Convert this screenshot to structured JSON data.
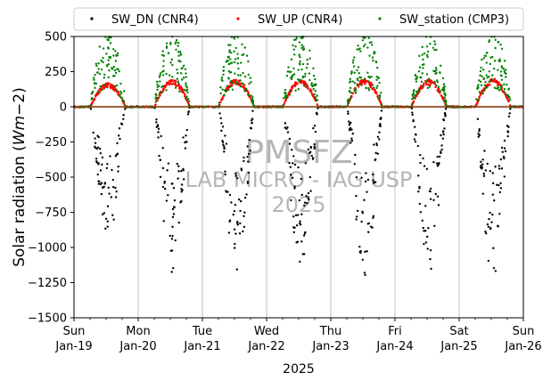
{
  "chart_data": {
    "type": "scatter",
    "title": "",
    "xlabel": "2025",
    "ylabel_main": "Solar radiation (",
    "ylabel_italic": "Wm",
    "ylabel_tail": "−2)",
    "ylim": [
      -1500,
      500
    ],
    "yticks": [
      500,
      250,
      0,
      -250,
      -500,
      -750,
      -1000,
      -1250,
      -1500
    ],
    "x_range_days": [
      0,
      7
    ],
    "xticks": [
      {
        "day": 0,
        "line1": "Sun",
        "line2": "Jan-19"
      },
      {
        "day": 1,
        "line1": "Mon",
        "line2": "Jan-20"
      },
      {
        "day": 2,
        "line1": "Tue",
        "line2": "Jan-21"
      },
      {
        "day": 3,
        "line1": "Wed",
        "line2": "Jan-22"
      },
      {
        "day": 4,
        "line1": "Thu",
        "line2": "Jan-23"
      },
      {
        "day": 5,
        "line1": "Fri",
        "line2": "Jan-24"
      },
      {
        "day": 6,
        "line1": "Sat",
        "line2": "Jan-25"
      },
      {
        "day": 7,
        "line1": "Sun",
        "line2": "Jan-26"
      }
    ],
    "grid": "vertical lines at day boundaries",
    "zero_line": true,
    "legend_position": "top",
    "series": [
      {
        "name": "SW_DN (CNR4)",
        "color": "#000000",
        "daily_peak": [
          -950,
          -1200,
          -1200,
          -1150,
          -1200,
          -1200,
          -1220
        ]
      },
      {
        "name": "SW_UP (CNR4)",
        "color": "#ff0000",
        "daily_peak": [
          170,
          200,
          200,
          195,
          200,
          195,
          200
        ]
      },
      {
        "name": "SW_station (CMP3)",
        "color": "#008000",
        "daily_peak": [
          490,
          500,
          500,
          490,
          490,
          490,
          490
        ]
      }
    ],
    "sunrise_hour": 6.2,
    "sunset_hour": 19.2
  },
  "watermark": {
    "line1": "PMSFZ",
    "line2": "LAB MICRO - IAG USP",
    "line3": "2025"
  }
}
